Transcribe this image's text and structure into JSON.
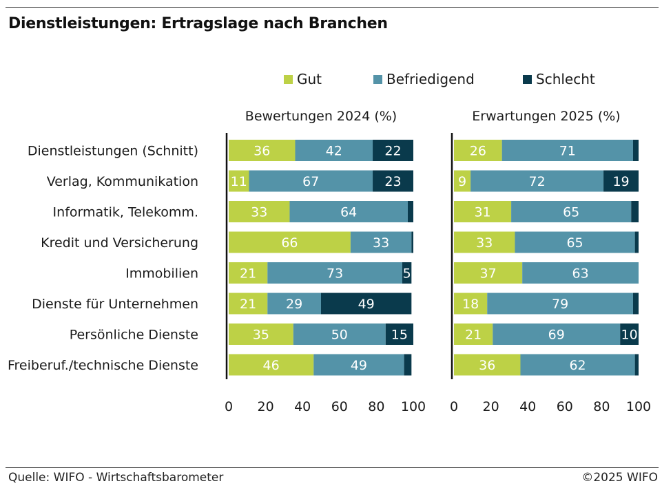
{
  "title": "Dienstleistungen: Ertragslage nach Branchen",
  "source": "Quelle: WIFO - Wirtschaftsbarometer",
  "copyright": "©2025 WIFO",
  "colors": {
    "gut": "#bdd146",
    "befriedigend": "#5493a8",
    "schlecht": "#0a3a4c"
  },
  "chart_data": {
    "type": "bar",
    "stacked": true,
    "orientation": "horizontal",
    "legend": [
      "Gut",
      "Befriedigend",
      "Schlecht"
    ],
    "categories": [
      "Dienstleistungen (Schnitt)",
      "Verlag, Kommunikation",
      "Informatik, Telekomm.",
      "Kredit und Versicherung",
      "Immobilien",
      "Dienste für Unternehmen",
      "Persönliche Dienste",
      "Freiberuf./technische Dienste"
    ],
    "xlim": [
      0,
      100
    ],
    "xticks": [
      "0",
      "20",
      "40",
      "60",
      "80",
      "100"
    ],
    "panels": [
      {
        "title": "Bewertungen 2024 (%)",
        "series": [
          {
            "name": "Gut",
            "values": [
              36,
              11,
              33,
              66,
              21,
              21,
              35,
              46
            ]
          },
          {
            "name": "Befriedigend",
            "values": [
              42,
              67,
              64,
              33,
              73,
              29,
              50,
              49
            ]
          },
          {
            "name": "Schlecht",
            "values": [
              22,
              23,
              3,
              1,
              5,
              49,
              15,
              4
            ]
          }
        ],
        "labels": [
          [
            "36",
            "42",
            "22"
          ],
          [
            "11",
            "67",
            "23"
          ],
          [
            "33",
            "64",
            ""
          ],
          [
            "66",
            "33",
            ""
          ],
          [
            "21",
            "73",
            "5"
          ],
          [
            "21",
            "29",
            "49"
          ],
          [
            "35",
            "50",
            "15"
          ],
          [
            "46",
            "49",
            ""
          ]
        ]
      },
      {
        "title": "Erwartungen 2025 (%)",
        "series": [
          {
            "name": "Gut",
            "values": [
              26,
              9,
              31,
              33,
              37,
              18,
              21,
              36
            ]
          },
          {
            "name": "Befriedigend",
            "values": [
              71,
              72,
              65,
              65,
              63,
              79,
              69,
              62
            ]
          },
          {
            "name": "Schlecht",
            "values": [
              4,
              19,
              4,
              2,
              0,
              3,
              10,
              2
            ]
          }
        ],
        "labels": [
          [
            "26",
            "71",
            ""
          ],
          [
            "9",
            "72",
            "19"
          ],
          [
            "31",
            "65",
            ""
          ],
          [
            "33",
            "65",
            ""
          ],
          [
            "37",
            "63",
            ""
          ],
          [
            "18",
            "79",
            ""
          ],
          [
            "21",
            "69",
            "10"
          ],
          [
            "36",
            "62",
            ""
          ]
        ]
      }
    ]
  }
}
